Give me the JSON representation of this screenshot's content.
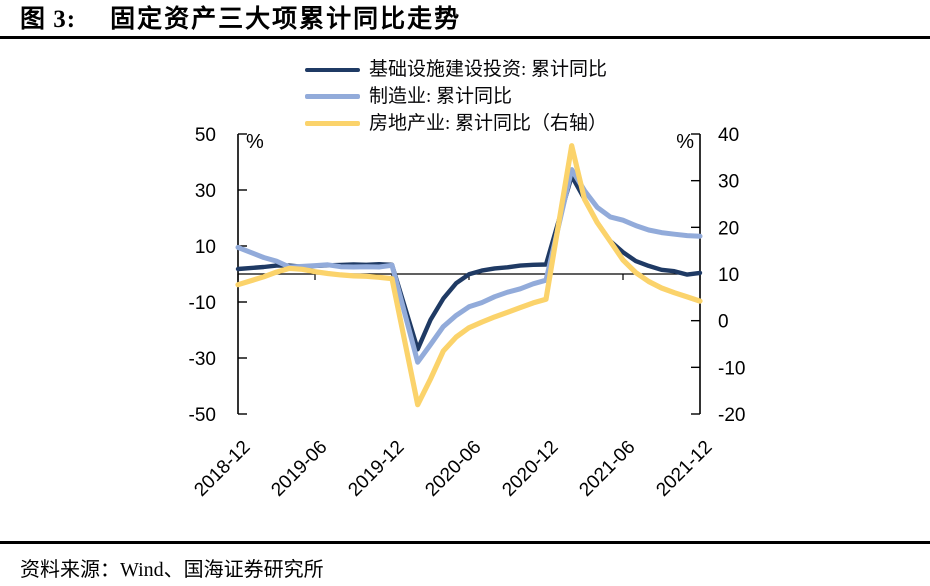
{
  "header": {
    "figure_label": "图 3:",
    "title": "固定资产三大项累计同比走势"
  },
  "source": "资料来源：Wind、国海证券研究所",
  "chart_data": {
    "type": "line",
    "title": "固定资产三大项累计同比走势",
    "legend_position": "top-center",
    "grid": false,
    "x_tick_labels": [
      "2018-12",
      "2019-06",
      "2019-12",
      "2020-06",
      "2020-12",
      "2021-06",
      "2021-12"
    ],
    "x_tick_offsets": [
      0,
      6,
      12,
      18,
      24,
      30,
      36
    ],
    "x_range_months": 36,
    "left_axis": {
      "unit": "%",
      "min": -50,
      "max": 50,
      "ticks": [
        50,
        30,
        10,
        -10,
        -30,
        -50
      ]
    },
    "right_axis": {
      "unit": "%",
      "min": -20,
      "max": 40,
      "ticks": [
        40,
        30,
        20,
        10,
        0,
        -10,
        -20
      ]
    },
    "x_offsets": [
      0,
      2,
      3,
      4,
      5,
      6,
      7,
      8,
      9,
      10,
      11,
      12,
      14,
      15,
      16,
      17,
      18,
      19,
      20,
      21,
      22,
      23,
      24,
      26,
      27,
      28,
      29,
      30,
      31,
      32,
      33,
      34,
      35,
      36
    ],
    "series": [
      {
        "id": "infrastructure",
        "name": "基础设施建设投资: 累计同比",
        "axis": "left",
        "color": "#1f3a64",
        "width": 4.4,
        "values": [
          1.8,
          2.5,
          3.0,
          3.0,
          2.6,
          2.9,
          3.1,
          3.2,
          3.4,
          3.3,
          3.5,
          3.3,
          -26.9,
          -16.4,
          -8.8,
          -3.3,
          -0.1,
          1.2,
          2.0,
          2.4,
          3.0,
          3.3,
          3.4,
          35.0,
          26.8,
          18.4,
          11.8,
          7.8,
          4.6,
          2.9,
          1.5,
          1.0,
          -0.2,
          0.4
        ]
      },
      {
        "id": "manufacturing",
        "name": "制造业: 累计同比",
        "axis": "left",
        "color": "#92abda",
        "width": 5,
        "values": [
          9.5,
          5.9,
          4.6,
          2.5,
          2.7,
          3.0,
          3.3,
          2.6,
          2.5,
          2.6,
          2.5,
          3.1,
          -31.5,
          -25.2,
          -18.8,
          -14.8,
          -11.7,
          -10.2,
          -8.1,
          -6.5,
          -5.3,
          -3.5,
          -2.2,
          37.3,
          29.8,
          23.8,
          20.4,
          19.2,
          17.3,
          15.7,
          14.8,
          14.2,
          13.7,
          13.5
        ]
      },
      {
        "id": "real-estate",
        "name": "房地产业: 累计同比（右轴）",
        "axis": "right",
        "color": "#fbd36b",
        "width": 5.2,
        "values": [
          7.7,
          9.4,
          10.4,
          11.2,
          11.0,
          10.5,
          10.1,
          9.8,
          9.6,
          9.5,
          9.3,
          9.0,
          -18.0,
          -12.5,
          -6.5,
          -3.5,
          -1.5,
          -0.3,
          0.8,
          1.8,
          2.8,
          3.8,
          4.6,
          37.5,
          26.0,
          21.0,
          17.0,
          13.0,
          10.3,
          8.4,
          7.0,
          6.0,
          5.1,
          4.2
        ]
      }
    ]
  }
}
